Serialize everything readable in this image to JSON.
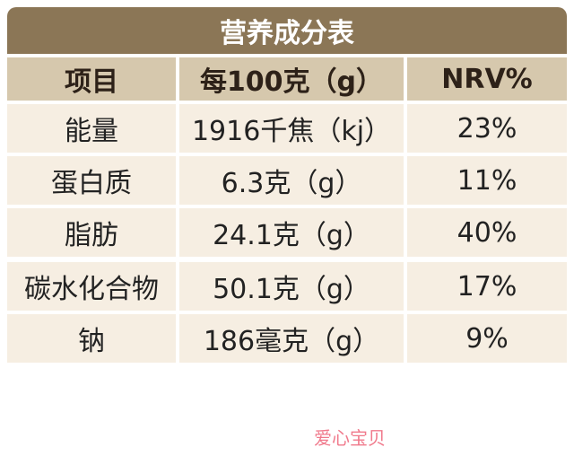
{
  "table": {
    "title": "营养成分表",
    "header": [
      "项目",
      "每100克（g）",
      "NRV%"
    ],
    "rows": [
      [
        "能量",
        "1916千焦（kj）",
        "23%"
      ],
      [
        "蛋白质",
        "6.3克（g）",
        "11%"
      ],
      [
        "脂肪",
        "24.1克（g）",
        "40%"
      ],
      [
        "碳水化合物",
        "50.1克（g）",
        "17%"
      ],
      [
        "钠",
        "186毫克（g）",
        "9%"
      ]
    ]
  },
  "watermark": {
    "text": "爱心宝贝"
  }
}
